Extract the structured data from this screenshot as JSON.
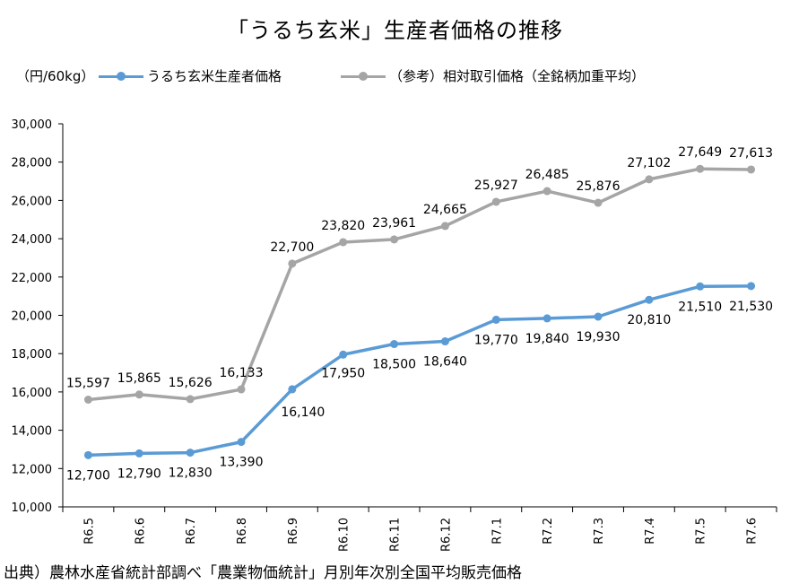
{
  "title": "「うるち玄米」生産者価格の推移",
  "unit": "（円/60kg）",
  "source": "出典）農林水産省統計部調べ「農業物価統計」月別年次別全国平均販売価格",
  "colors": {
    "blue": "#5b9bd5",
    "gray": "#a5a5a5",
    "axis": "#000000"
  },
  "chart_data": {
    "type": "line",
    "title": "「うるち玄米」生産者価格の推移",
    "ylabel": "（円/60kg）",
    "xlabel": "",
    "ylim": [
      10000,
      30000
    ],
    "ytick_step": 2000,
    "ytick_labels": [
      "10,000",
      "12,000",
      "14,000",
      "16,000",
      "18,000",
      "20,000",
      "22,000",
      "24,000",
      "26,000",
      "28,000",
      "30,000"
    ],
    "grid": false,
    "legend_position": "top",
    "categories": [
      "R6.5",
      "R6.6",
      "R6.7",
      "R6.8",
      "R6.9",
      "R6.10",
      "R6.11",
      "R6.12",
      "R7.1",
      "R7.2",
      "R7.3",
      "R7.4",
      "R7.5",
      "R7.6"
    ],
    "series": [
      {
        "name": "うるち玄米生産者価格",
        "color": "#5b9bd5",
        "values": [
          12700,
          12790,
          12830,
          13390,
          16140,
          17950,
          18500,
          18640,
          19770,
          19840,
          19930,
          20810,
          21510,
          21530
        ],
        "labels": [
          "12,700",
          "12,790",
          "12,830",
          "13,390",
          "16,140",
          "17,950",
          "18,500",
          "18,640",
          "19,770",
          "19,840",
          "19,930",
          "20,810",
          "21,510",
          "21,530"
        ]
      },
      {
        "name": "（参考）相対取引価格（全銘柄加重平均）",
        "color": "#a5a5a5",
        "values": [
          15597,
          15865,
          15626,
          16133,
          22700,
          23820,
          23961,
          24665,
          25927,
          26485,
          25876,
          27102,
          27649,
          27613
        ],
        "labels": [
          "15,597",
          "15,865",
          "15,626",
          "16,133",
          "22,700",
          "23,820",
          "23,961",
          "24,665",
          "25,927",
          "26,485",
          "25,876",
          "27,102",
          "27,649",
          "27,613"
        ]
      }
    ]
  }
}
